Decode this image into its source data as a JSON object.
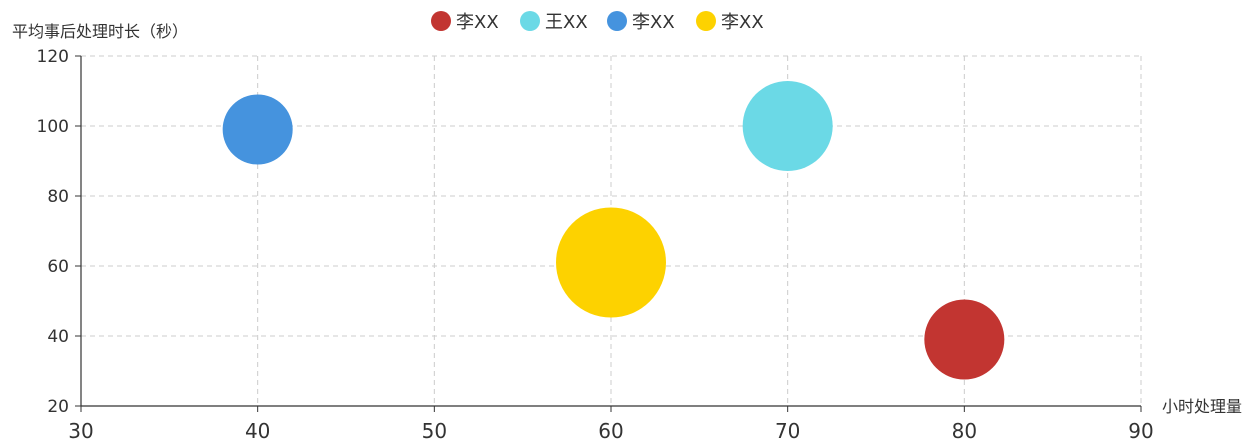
{
  "chart_data": {
    "type": "scatter",
    "xlabel": "小时处理量",
    "ylabel": "平均事后处理时长（秒）",
    "xlim": [
      30,
      90
    ],
    "ylim": [
      20,
      120
    ],
    "x_ticks": [
      30,
      40,
      50,
      60,
      70,
      80,
      90
    ],
    "y_ticks": [
      20,
      40,
      60,
      80,
      100,
      120
    ],
    "grid": true,
    "legend_position": "top-center",
    "series": [
      {
        "name": "李XX",
        "color": "#c23531",
        "points": [
          {
            "x": 80,
            "y": 39,
            "size": 40
          }
        ]
      },
      {
        "name": "王XX",
        "color": "#6bd9e6",
        "points": [
          {
            "x": 70,
            "y": 100,
            "size": 45
          }
        ]
      },
      {
        "name": "李XX",
        "color": "#4593de",
        "points": [
          {
            "x": 40,
            "y": 99,
            "size": 35
          }
        ]
      },
      {
        "name": "李XX",
        "color": "#fdd200",
        "points": [
          {
            "x": 60,
            "y": 61,
            "size": 55
          }
        ]
      }
    ]
  }
}
